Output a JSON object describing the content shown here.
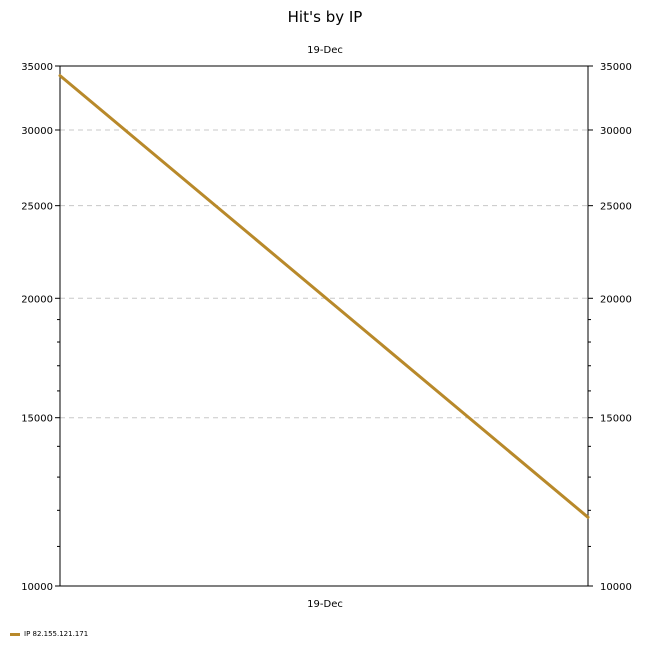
{
  "chart_data": {
    "type": "line",
    "title": "Hit's by IP",
    "top_category_label": "19-Dec",
    "categories": [
      "19-Dec"
    ],
    "x_scale": "log",
    "y_scale": "log",
    "ylim": [
      10000,
      35000
    ],
    "yticks": [
      10000,
      15000,
      20000,
      25000,
      30000,
      35000
    ],
    "grid": true,
    "legend_position": "bottom-left",
    "series": [
      {
        "name": "IP 82.155.121.171",
        "color": "#b8892a",
        "start_value": 34200,
        "end_value": 11800
      }
    ]
  }
}
